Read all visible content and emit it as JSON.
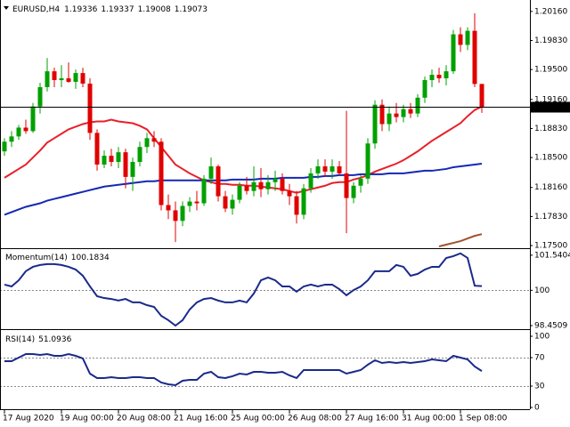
{
  "chart_data": [
    {
      "type": "candlestick",
      "title": "EURUSD,H4",
      "categories": [
        "17 Aug 2020",
        null,
        null,
        null,
        null,
        null,
        null,
        null,
        "19 Aug 00:00",
        null,
        null,
        null,
        null,
        null,
        null,
        null,
        "20 Aug 08:00",
        null,
        null,
        null,
        null,
        null,
        null,
        null,
        "21 Aug 16:00",
        null,
        null,
        null,
        null,
        null,
        null,
        null,
        "25 Aug 00:00",
        null,
        null,
        null,
        null,
        null,
        null,
        null,
        "26 Aug 08:00",
        null,
        null,
        null,
        null,
        null,
        null,
        null,
        "27 Aug 16:00",
        null,
        null,
        null,
        null,
        null,
        null,
        null,
        "31 Aug 00:00",
        null,
        null,
        null,
        null,
        null,
        null,
        null,
        "1 Sep 08:00",
        null,
        null,
        null
      ],
      "open": [
        1.1857,
        1.1868,
        1.1874,
        1.1884,
        1.188,
        1.1908,
        1.193,
        1.1948,
        1.1938,
        1.194,
        1.1936,
        1.1946,
        1.1934,
        1.1878,
        1.1842,
        1.1852,
        1.1845,
        1.1856,
        1.1828,
        1.1845,
        1.1862,
        1.1872,
        1.1868,
        1.1796,
        1.179,
        1.1778,
        1.1795,
        1.18,
        1.1798,
        1.1826,
        1.184,
        1.1806,
        1.1792,
        1.1802,
        1.1818,
        1.1812,
        1.1822,
        1.1814,
        1.1822,
        1.1826,
        1.1812,
        1.1806,
        1.1785,
        1.1815,
        1.1832,
        1.184,
        1.1834,
        1.184,
        1.1832,
        1.1804,
        1.1818,
        1.1826,
        1.1866,
        1.191,
        1.1888,
        1.19,
        1.1896,
        1.1905,
        1.19,
        1.1918,
        1.1938,
        1.1944,
        1.194,
        1.1948,
        1.199,
        1.1978,
        1.1994,
        1.19336
      ],
      "high": [
        1.1872,
        1.188,
        1.1887,
        1.1893,
        1.1912,
        1.1935,
        1.1963,
        1.1952,
        1.1955,
        1.1958,
        1.195,
        1.1952,
        1.194,
        1.1882,
        1.1858,
        1.186,
        1.1862,
        1.186,
        1.185,
        1.1868,
        1.1878,
        1.188,
        1.1872,
        1.1808,
        1.18,
        1.18,
        1.1805,
        1.1812,
        1.183,
        1.185,
        1.1842,
        1.1812,
        1.1808,
        1.1822,
        1.1828,
        1.184,
        1.1838,
        1.183,
        1.1835,
        1.1832,
        1.182,
        1.1812,
        1.182,
        1.1838,
        1.1848,
        1.1848,
        1.1848,
        1.1846,
        1.1903,
        1.1822,
        1.183,
        1.1872,
        1.1915,
        1.1916,
        1.1908,
        1.1912,
        1.191,
        1.1912,
        1.1922,
        1.1942,
        1.195,
        1.1952,
        1.1955,
        1.1995,
        1.1998,
        1.1998,
        1.2014,
        1.19337
      ],
      "low": [
        1.1852,
        1.1862,
        1.187,
        1.1877,
        1.1878,
        1.19,
        1.1925,
        1.193,
        1.193,
        1.1935,
        1.1928,
        1.193,
        1.187,
        1.1835,
        1.1838,
        1.184,
        1.1838,
        1.1815,
        1.1812,
        1.184,
        1.1855,
        1.1862,
        1.179,
        1.178,
        1.1754,
        1.1772,
        1.1788,
        1.179,
        1.1795,
        1.182,
        1.18,
        1.1788,
        1.1785,
        1.1798,
        1.1808,
        1.1806,
        1.1805,
        1.1808,
        1.1812,
        1.1808,
        1.1796,
        1.1775,
        1.178,
        1.181,
        1.1826,
        1.1828,
        1.1826,
        1.183,
        1.1764,
        1.1798,
        1.181,
        1.182,
        1.186,
        1.188,
        1.188,
        1.189,
        1.189,
        1.1895,
        1.1896,
        1.1912,
        1.193,
        1.1935,
        1.1932,
        1.1945,
        1.197,
        1.1972,
        1.193,
        1.19008
      ],
      "close": [
        1.1868,
        1.1874,
        1.1884,
        1.188,
        1.1908,
        1.193,
        1.1948,
        1.1938,
        1.194,
        1.1936,
        1.1946,
        1.1934,
        1.1878,
        1.1842,
        1.1852,
        1.1845,
        1.1856,
        1.1828,
        1.1845,
        1.1862,
        1.1872,
        1.1868,
        1.1796,
        1.179,
        1.1778,
        1.1795,
        1.18,
        1.1798,
        1.1826,
        1.184,
        1.1806,
        1.1792,
        1.1802,
        1.1818,
        1.1812,
        1.1822,
        1.1814,
        1.1822,
        1.1826,
        1.1812,
        1.1806,
        1.1785,
        1.1815,
        1.1832,
        1.184,
        1.1834,
        1.184,
        1.1832,
        1.1804,
        1.1818,
        1.1826,
        1.1866,
        1.191,
        1.1888,
        1.19,
        1.1896,
        1.1905,
        1.19,
        1.1918,
        1.1938,
        1.1944,
        1.194,
        1.1948,
        1.199,
        1.1978,
        1.1994,
        1.19336,
        1.19073
      ],
      "up_color": "#00a000",
      "down_color": "#e00000",
      "series": [
        {
          "color": "#e8202a",
          "values": [
            1.1827,
            1.1832,
            1.1837,
            1.1842,
            1.185,
            1.1858,
            1.1867,
            1.1872,
            1.1877,
            1.1882,
            1.1885,
            1.1888,
            1.189,
            1.1891,
            1.1891,
            1.1893,
            1.1891,
            1.189,
            1.1889,
            1.1886,
            1.1882,
            1.1872,
            1.1862,
            1.1852,
            1.1842,
            1.1837,
            1.1832,
            1.1828,
            1.1824,
            1.1822,
            1.182,
            1.182,
            1.1819,
            1.1819,
            1.1818,
            1.1818,
            1.1817,
            1.1816,
            1.1815,
            1.1814,
            1.1812,
            1.181,
            1.1812,
            1.1814,
            1.1816,
            1.1818,
            1.1821,
            1.1822,
            1.1822,
            1.1825,
            1.1827,
            1.183,
            1.1834,
            1.1837,
            1.184,
            1.1843,
            1.1847,
            1.1852,
            1.1857,
            1.1863,
            1.1869,
            1.1874,
            1.1879,
            1.1884,
            1.1889,
            1.1897,
            1.1904,
            1.1908
          ]
        },
        {
          "color": "#1428b4",
          "values": [
            1.1785,
            1.1788,
            1.1791,
            1.1794,
            1.1796,
            1.1798,
            1.1801,
            1.1803,
            1.1805,
            1.1807,
            1.1809,
            1.1811,
            1.1813,
            1.1815,
            1.1817,
            1.1818,
            1.1819,
            1.182,
            1.1821,
            1.1822,
            1.1823,
            1.1823,
            1.1824,
            1.1824,
            1.1824,
            1.1824,
            1.1824,
            1.1824,
            1.1824,
            1.1824,
            1.1824,
            1.1824,
            1.1825,
            1.1825,
            1.1825,
            1.1825,
            1.1826,
            1.1826,
            1.1826,
            1.1827,
            1.1827,
            1.1827,
            1.1827,
            1.1828,
            1.1828,
            1.1829,
            1.1829,
            1.183,
            1.183,
            1.183,
            1.1831,
            1.1831,
            1.1831,
            1.1831,
            1.1832,
            1.1832,
            1.1832,
            1.1833,
            1.1834,
            1.1835,
            1.1835,
            1.1836,
            1.1837,
            1.1839,
            1.184,
            1.1841,
            1.1842,
            1.1843
          ]
        },
        {
          "color": "#a0522d",
          "values": [
            null,
            null,
            null,
            null,
            null,
            null,
            null,
            null,
            null,
            null,
            null,
            null,
            null,
            null,
            null,
            null,
            null,
            null,
            null,
            null,
            null,
            null,
            null,
            null,
            null,
            null,
            null,
            null,
            null,
            null,
            null,
            null,
            null,
            null,
            null,
            null,
            null,
            null,
            null,
            null,
            null,
            null,
            null,
            null,
            null,
            null,
            null,
            null,
            null,
            null,
            null,
            null,
            null,
            null,
            null,
            null,
            null,
            null,
            null,
            null,
            null,
            1.1749,
            1.1751,
            1.1753,
            1.1755,
            1.1758,
            1.1761,
            1.1763
          ]
        }
      ],
      "price_line_color": "#000000",
      "ylim": [
        1.1748,
        1.2029
      ],
      "yticks": [
        {
          "value": 1.2016,
          "label": "1.20160"
        },
        {
          "value": 1.1983,
          "label": "1.19830"
        },
        {
          "value": 1.195,
          "label": "1.19500"
        },
        {
          "value": 1.1916,
          "label": "1.19160"
        },
        {
          "value": 1.1883,
          "label": "1.18830"
        },
        {
          "value": 1.185,
          "label": "1.18500"
        },
        {
          "value": 1.1816,
          "label": "1.18160"
        },
        {
          "value": 1.1783,
          "label": "1.17830"
        },
        {
          "value": 1.175,
          "label": "1.17500"
        }
      ]
    },
    {
      "type": "line",
      "title": "Momentum(14)",
      "color": "#1a2a8a",
      "values": [
        100.25,
        100.17,
        100.44,
        100.84,
        101.03,
        101.11,
        101.15,
        101.15,
        101.11,
        101.03,
        100.91,
        100.64,
        100.17,
        99.74,
        99.66,
        99.62,
        99.55,
        99.62,
        99.47,
        99.47,
        99.35,
        99.27,
        98.88,
        98.69,
        98.45,
        98.69,
        99.16,
        99.47,
        99.62,
        99.66,
        99.55,
        99.47,
        99.47,
        99.55,
        99.47,
        99.86,
        100.44,
        100.56,
        100.44,
        100.17,
        100.17,
        99.94,
        100.17,
        100.25,
        100.17,
        100.25,
        100.25,
        100.05,
        99.78,
        100.01,
        100.17,
        100.44,
        100.84,
        100.84,
        100.84,
        101.11,
        101.03,
        100.64,
        100.72,
        100.91,
        101.03,
        101.03,
        101.42,
        101.5,
        101.62,
        101.42,
        100.2,
        100.1834
      ],
      "ylim": [
        98.374,
        101.77
      ],
      "yticks": [
        101.5404,
        100,
        98.4509
      ],
      "levels": [
        100
      ]
    },
    {
      "type": "line",
      "title": "RSI(14)",
      "color": "#1a2a8a",
      "values": [
        65,
        65,
        70,
        75,
        75,
        73.8,
        75,
        72.5,
        72.5,
        75,
        72.5,
        68.8,
        47.5,
        41.3,
        41.3,
        42.5,
        41.3,
        41.3,
        42.5,
        42.5,
        41.3,
        41.3,
        35,
        32.5,
        31.3,
        37.5,
        38.8,
        38.8,
        47.5,
        50,
        42.5,
        41.3,
        43.8,
        47.5,
        46.3,
        50,
        50,
        48.8,
        48.8,
        50,
        45,
        41.3,
        52.5,
        52.5,
        52.5,
        52.5,
        52.5,
        52.5,
        47.5,
        50,
        52.5,
        60,
        66.3,
        62.5,
        63.8,
        62.5,
        63.8,
        62.5,
        63.8,
        65,
        67.5,
        66.3,
        65,
        72.5,
        70,
        67.5,
        57.5,
        51.0936
      ],
      "ylim": [
        -2.5,
        107.5
      ],
      "yticks": [
        100,
        70,
        30,
        0
      ],
      "levels": [
        70,
        30
      ]
    }
  ]
}
